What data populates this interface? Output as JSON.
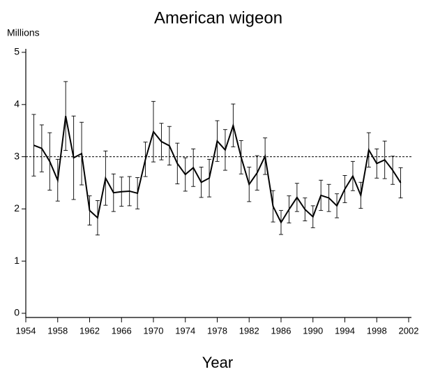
{
  "chart_data": {
    "type": "line",
    "title": "American wigeon",
    "y_label": "Millions",
    "x_label": "Year",
    "x": [
      1955,
      1956,
      1957,
      1958,
      1959,
      1960,
      1961,
      1962,
      1963,
      1964,
      1965,
      1966,
      1967,
      1968,
      1969,
      1970,
      1971,
      1972,
      1973,
      1974,
      1975,
      1976,
      1977,
      1978,
      1979,
      1980,
      1981,
      1982,
      1983,
      1984,
      1985,
      1986,
      1987,
      1988,
      1989,
      1990,
      1991,
      1992,
      1993,
      1994,
      1995,
      1996,
      1997,
      1998,
      1999,
      2000,
      2001
    ],
    "series": [
      {
        "color": "#000000",
        "values": [
          3.22,
          3.16,
          2.91,
          2.55,
          3.78,
          2.98,
          3.06,
          1.97,
          1.83,
          2.59,
          2.31,
          2.33,
          2.34,
          2.3,
          2.95,
          3.48,
          3.29,
          3.21,
          2.87,
          2.66,
          2.79,
          2.51,
          2.59,
          3.3,
          3.13,
          3.6,
          2.99,
          2.47,
          2.69,
          3.01,
          2.05,
          1.74,
          1.99,
          2.22,
          1.99,
          1.85,
          2.26,
          2.21,
          2.06,
          2.38,
          2.63,
          2.26,
          3.13,
          2.87,
          2.94,
          2.74,
          2.5
        ],
        "errors": [
          0.59,
          0.45,
          0.55,
          0.4,
          0.66,
          0.8,
          0.6,
          0.28,
          0.33,
          0.52,
          0.36,
          0.28,
          0.28,
          0.3,
          0.33,
          0.58,
          0.35,
          0.37,
          0.39,
          0.32,
          0.36,
          0.29,
          0.36,
          0.39,
          0.39,
          0.41,
          0.32,
          0.33,
          0.33,
          0.35,
          0.3,
          0.23,
          0.26,
          0.27,
          0.22,
          0.21,
          0.29,
          0.26,
          0.23,
          0.26,
          0.28,
          0.25,
          0.33,
          0.28,
          0.36,
          0.27,
          0.29
        ]
      }
    ],
    "reference_line": 3,
    "xlim": [
      1954,
      2002
    ],
    "xticks": [
      1954,
      1958,
      1962,
      1966,
      1970,
      1974,
      1978,
      1982,
      1986,
      1990,
      1994,
      1998,
      2002
    ],
    "ylim": [
      0,
      5
    ],
    "yticks": [
      0,
      1,
      2,
      3,
      4,
      5
    ]
  }
}
